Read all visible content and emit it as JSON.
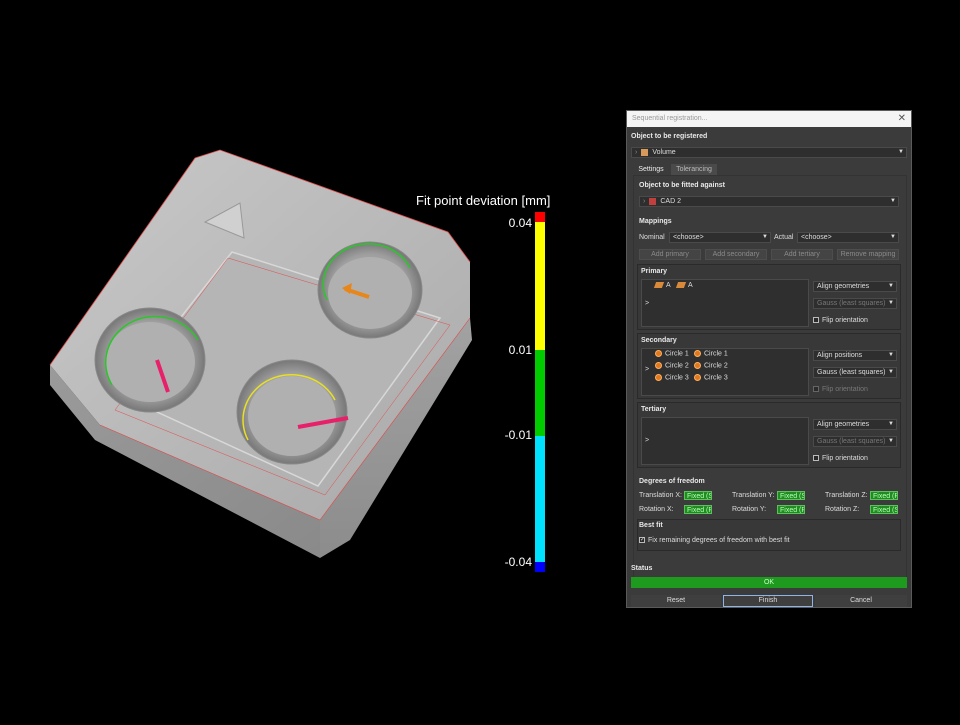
{
  "legend": {
    "title": "Fit point deviation [mm]",
    "ticks": [
      "0.04",
      "0.01",
      "-0.01",
      "-0.04"
    ],
    "colors": {
      "top": "#ff0000",
      "yellow": "#ffff00",
      "green": "#00cc00",
      "cyan": "#00e0ff",
      "bottom": "#0000ff"
    }
  },
  "dialog": {
    "title": "Sequential registration...",
    "object_label": "Object to be registered",
    "object_value": "Volume",
    "tabs": [
      "Settings",
      "Tolerancing"
    ],
    "fit_against_label": "Object to be fitted against",
    "fit_against_value": "CAD 2",
    "mappings": {
      "label": "Mappings",
      "nominal_label": "Nominal",
      "nominal_value": "<choose>",
      "actual_label": "Actual",
      "actual_value": "<choose>",
      "buttons": [
        "Add primary",
        "Add secondary",
        "Add tertiary",
        "Remove mapping"
      ]
    },
    "primary": {
      "label": "Primary",
      "item_a1": "A",
      "item_a2": "A",
      "arrow": ">",
      "method": "Align geometries",
      "algorithm": "Gauss (least squares)",
      "flip": "Flip orientation"
    },
    "secondary": {
      "label": "Secondary",
      "nominal_items": [
        "Circle 1",
        "Circle 2",
        "Circle 3"
      ],
      "actual_items": [
        "Circle 1",
        "Circle 2",
        "Circle 3"
      ],
      "arrow": ">",
      "method": "Align positions",
      "algorithm": "Gauss (least squares)",
      "flip": "Flip orientation"
    },
    "tertiary": {
      "label": "Tertiary",
      "arrow": ">",
      "method": "Align geometries",
      "algorithm": "Gauss (least squares)",
      "flip": "Flip orientation"
    },
    "dof": {
      "label": "Degrees of freedom",
      "translation_x_label": "Translation X:",
      "translation_x_value": "Fixed (S)",
      "translation_y_label": "Translation Y:",
      "translation_y_value": "Fixed (S)",
      "translation_z_label": "Translation Z:",
      "translation_z_value": "Fixed (P)",
      "rotation_x_label": "Rotation X:",
      "rotation_x_value": "Fixed (P)",
      "rotation_y_label": "Rotation Y:",
      "rotation_y_value": "Fixed (P)",
      "rotation_z_label": "Rotation Z:",
      "rotation_z_value": "Fixed (S)"
    },
    "best_fit": {
      "label": "Best fit",
      "checkbox": "Fix remaining degrees of freedom with best fit",
      "checked": true
    },
    "status": {
      "label": "Status",
      "value": "OK"
    },
    "footer": {
      "reset": "Reset",
      "finish": "Finish",
      "cancel": "Cancel"
    }
  }
}
